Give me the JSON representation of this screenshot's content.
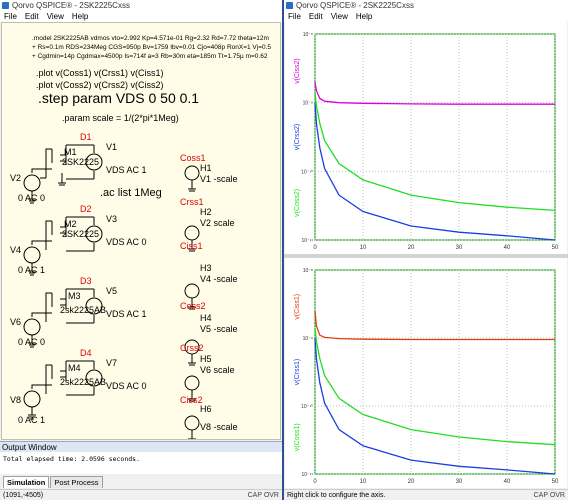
{
  "left_window": {
    "title": "Qorvo QSPICE® - 2SK2225Cxss",
    "menu": [
      "File",
      "Edit",
      "View",
      "Help"
    ]
  },
  "right_window": {
    "title": "Qorvo QSPICE® - 2SK2225Cxss",
    "menu": [
      "File",
      "Edit",
      "View",
      "Help"
    ]
  },
  "schematic": {
    "model_line1": ".model 2SK2225AB vdmos vto=2.992 Kp=4.571e-01   Rg=2.32  Rd=7.72  theta=12m",
    "model_line2": "+ Rs=0.1m RDS=234Meg CGS=950p Bv=1759 Ibv=0.01 Cjo=408p RonX=1 Vj=0.5",
    "model_line3": "+ Cgdmin=14p Cgdmax=4500p Is=714f a=3 Rb=30m eta=185m Tt=1.75µ m=0.62",
    "plot1": ".plot v(Coss1) v(Crss1) v(Ciss1)",
    "plot2": ".plot v(Coss2) v(Crss2) v(Ciss2)",
    "step": ".step param VDS 0 50  0.1",
    "param": ".param  scale = 1/(2*pi*1Meg)",
    "ac": ".ac list 1Meg",
    "cells": [
      {
        "diode": "D1",
        "m": "M1",
        "part": "2SK2225",
        "v_src": "V1",
        "v_val": "VDS AC 1",
        "v_gate": "V2",
        "v_gate_val": "0 AC 0"
      },
      {
        "diode": "D2",
        "m": "M2",
        "part": "2SK2225",
        "v_src": "V3",
        "v_val": "VDS AC 0",
        "v_gate": "V4",
        "v_gate_val": "0 AC 1"
      },
      {
        "diode": "D3",
        "m": "M3",
        "part": "2sk2225AB",
        "v_src": "V5",
        "v_val": "VDS AC 1",
        "v_gate": "V6",
        "v_gate_val": "0 AC 0"
      },
      {
        "diode": "D4",
        "m": "M4",
        "part": "2sk2225AB",
        "v_src": "V7",
        "v_val": "VDS AC 0",
        "v_gate": "V8",
        "v_gate_val": "0 AC 1"
      }
    ],
    "probes": [
      {
        "net": "Coss1",
        "h": "H1",
        "expr": "V1 -scale"
      },
      {
        "net": "Crss1",
        "h": "H2",
        "expr": "V2 scale"
      },
      {
        "net": "Ciss1",
        "h": "H3",
        "expr": "V4 -scale"
      },
      {
        "net": "Coss2",
        "h": "H4",
        "expr": "V5 -scale"
      },
      {
        "net": "Crss2",
        "h": "H5",
        "expr": "V6 scale"
      },
      {
        "net": "Ciss2",
        "h": "H6",
        "expr": "V8 -scale"
      }
    ]
  },
  "output": {
    "header": "Output Window",
    "text": "Total elapsed time: 2.0596 seconds."
  },
  "tabs": [
    "Simulation",
    "Post Process"
  ],
  "status_left": {
    "coords": "(1091,-4505)",
    "mode": "CAP OVR"
  },
  "status_right": {
    "hint": "Right click to configure the  axis.",
    "mode": "CAP OVR"
  },
  "plots": {
    "top": {
      "labels": [
        "v(Ciss2)",
        "v(Crss2)",
        "v(Coss2)"
      ],
      "colors": [
        "#dd00dd",
        "#1a3fe0",
        "#22dd22"
      ]
    },
    "bottom": {
      "labels": [
        "v(Ciss1)",
        "v(Crss1)",
        "v(Coss1)"
      ],
      "colors": [
        "#e04010",
        "#1a3fe0",
        "#22dd22"
      ]
    },
    "y_ticks": [
      "10⁻⁸",
      "10⁻⁹",
      "10⁻¹⁰",
      "10⁻¹¹"
    ],
    "x_ticks": [
      "0",
      "10",
      "20",
      "30",
      "40",
      "50"
    ]
  },
  "chart_data": [
    {
      "type": "line",
      "title": "",
      "xlabel": "",
      "ylabel": "",
      "xlim": [
        0,
        50
      ],
      "log_y": true,
      "ylim": [
        1e-11,
        1e-08
      ],
      "series": [
        {
          "name": "v(Ciss2)",
          "x": [
            0,
            0.3,
            1,
            2,
            5,
            10,
            20,
            30,
            40,
            50
          ],
          "values": [
            2e-09,
            1.5e-09,
            1.15e-09,
            1.05e-09,
            1e-09,
            9.8e-10,
            9.6e-10,
            9.5e-10,
            9.5e-10,
            9.5e-10
          ]
        },
        {
          "name": "v(Crss2)",
          "x": [
            0,
            0.3,
            1,
            2,
            5,
            10,
            20,
            30,
            40,
            50
          ],
          "values": [
            1e-09,
            5e-10,
            2.2e-10,
            1.1e-10,
            4.5e-11,
            2.6e-11,
            1.6e-11,
            1.3e-11,
            1.15e-11,
            1e-11
          ]
        },
        {
          "name": "v(Coss2)",
          "x": [
            0,
            0.3,
            1,
            2,
            5,
            10,
            20,
            30,
            40,
            50
          ],
          "values": [
            1.4e-09,
            9e-10,
            5e-10,
            2.8e-10,
            1.3e-10,
            7.5e-11,
            4.5e-11,
            3.5e-11,
            3e-11,
            2.7e-11
          ]
        }
      ]
    },
    {
      "type": "line",
      "title": "",
      "xlabel": "",
      "ylabel": "",
      "xlim": [
        0,
        50
      ],
      "log_y": true,
      "ylim": [
        1e-11,
        1e-08
      ],
      "series": [
        {
          "name": "v(Ciss1)",
          "x": [
            0,
            0.3,
            1,
            2,
            5,
            10,
            20,
            30,
            40,
            50
          ],
          "values": [
            2.5e-09,
            1.5e-09,
            1.1e-09,
            1.02e-09,
            9.8e-10,
            9.6e-10,
            9.5e-10,
            9.5e-10,
            9.5e-10,
            9.5e-10
          ]
        },
        {
          "name": "v(Crss1)",
          "x": [
            0,
            0.3,
            1,
            2,
            5,
            10,
            20,
            30,
            40,
            50
          ],
          "values": [
            1e-09,
            5e-10,
            2.2e-10,
            1.1e-10,
            4.5e-11,
            2.6e-11,
            1.6e-11,
            1.3e-11,
            1.15e-11,
            1e-11
          ]
        },
        {
          "name": "v(Coss1)",
          "x": [
            0,
            0.3,
            1,
            2,
            5,
            10,
            20,
            30,
            40,
            50
          ],
          "values": [
            1.4e-09,
            9e-10,
            5e-10,
            2.8e-10,
            1.3e-10,
            7.5e-11,
            4.5e-11,
            3.5e-11,
            3e-11,
            2.7e-11
          ]
        }
      ]
    }
  ]
}
